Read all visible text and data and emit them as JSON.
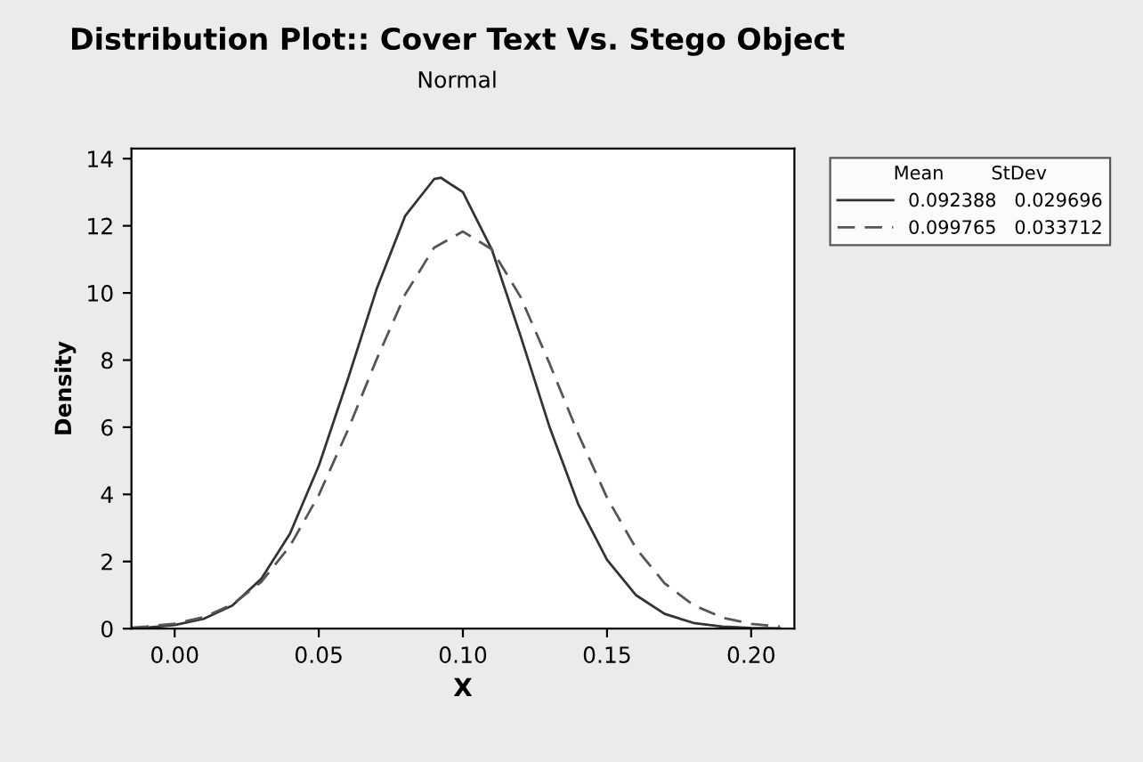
{
  "chart_data": {
    "type": "line",
    "title": "Distribution Plot:: Cover Text Vs. Stego Object",
    "subtitle": "Normal",
    "xlabel": "X",
    "ylabel": "Density",
    "legend_title": "Mean        StDev",
    "legend": "top right",
    "grid": false,
    "xlim": [
      -0.015,
      0.215
    ],
    "xticks": [
      {
        "value": 0,
        "label": "0.00"
      },
      0.05,
      {
        "value": 0.1,
        "label": "0.10"
      },
      0.15,
      {
        "value": 0.2,
        "label": "0.20"
      }
    ],
    "ylim": [
      0,
      14.3
    ],
    "yticks": [
      0,
      2,
      4,
      6,
      8,
      10,
      12,
      14
    ],
    "series": [
      {
        "name": "0.092388   0.029696",
        "color": "#333333",
        "line_style": "solid",
        "x": [
          -0.015,
          -0.01,
          0.0,
          0.01,
          0.02,
          0.03,
          0.04,
          0.05,
          0.06,
          0.07,
          0.08,
          0.09,
          0.0924,
          0.1,
          0.11,
          0.12,
          0.13,
          0.14,
          0.15,
          0.16,
          0.17,
          0.18,
          0.19,
          0.2,
          0.21
        ],
        "values": [
          0.01,
          0.03,
          0.11,
          0.29,
          0.69,
          1.48,
          2.83,
          4.85,
          7.41,
          10.1,
          12.3,
          13.39,
          13.43,
          13.0,
          11.3,
          8.72,
          6.02,
          3.71,
          2.05,
          1.0,
          0.44,
          0.17,
          0.06,
          0.02,
          0.01
        ]
      },
      {
        "name": "0.099765   0.033712",
        "color": "#555555",
        "line_style": "dashed",
        "x": [
          -0.015,
          -0.01,
          0.0,
          0.01,
          0.02,
          0.03,
          0.04,
          0.05,
          0.06,
          0.07,
          0.08,
          0.09,
          0.1,
          0.11,
          0.12,
          0.13,
          0.14,
          0.15,
          0.16,
          0.17,
          0.18,
          0.19,
          0.2,
          0.21
        ],
        "values": [
          0.03,
          0.06,
          0.15,
          0.34,
          0.72,
          1.39,
          2.46,
          3.98,
          5.9,
          8.01,
          9.96,
          11.35,
          11.83,
          11.3,
          9.88,
          7.91,
          5.8,
          3.9,
          2.4,
          1.35,
          0.7,
          0.33,
          0.14,
          0.06
        ]
      }
    ]
  }
}
